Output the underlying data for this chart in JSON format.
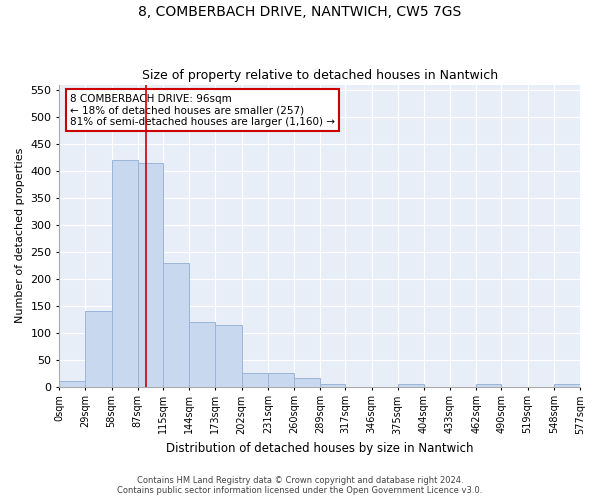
{
  "title": "8, COMBERBACH DRIVE, NANTWICH, CW5 7GS",
  "subtitle": "Size of property relative to detached houses in Nantwich",
  "xlabel": "Distribution of detached houses by size in Nantwich",
  "ylabel": "Number of detached properties",
  "bar_color": "#c8d9ef",
  "bar_edge_color": "#9ab5d8",
  "background_color": "#e8eef8",
  "grid_color": "#ffffff",
  "annotation_line1": "8 COMBERBACH DRIVE: 96sqm",
  "annotation_line2": "← 18% of detached houses are smaller (257)",
  "annotation_line3": "81% of semi-detached houses are larger (1,160) →",
  "annotation_box_color": "#cc0000",
  "vline_x": 96,
  "vline_color": "#cc0000",
  "bins": [
    0,
    29,
    58,
    87,
    115,
    144,
    173,
    202,
    231,
    260,
    289,
    317,
    346,
    375,
    404,
    433,
    462,
    490,
    519,
    548,
    577
  ],
  "bar_values": [
    10,
    140,
    420,
    415,
    230,
    120,
    115,
    25,
    25,
    15,
    5,
    0,
    0,
    5,
    0,
    0,
    5,
    0,
    0,
    5
  ],
  "ylim": [
    0,
    560
  ],
  "yticks": [
    0,
    50,
    100,
    150,
    200,
    250,
    300,
    350,
    400,
    450,
    500,
    550
  ],
  "footer_line1": "Contains HM Land Registry data © Crown copyright and database right 2024.",
  "footer_line2": "Contains public sector information licensed under the Open Government Licence v3.0."
}
